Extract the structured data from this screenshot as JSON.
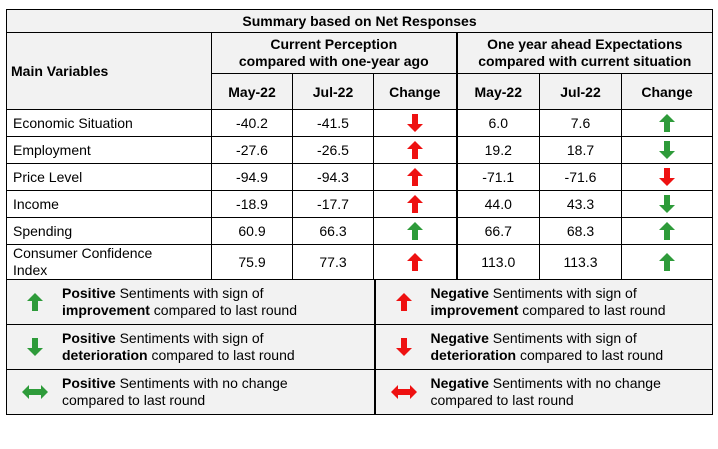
{
  "table": {
    "title": "Summary based on Net Responses",
    "main_variables_header": "Main Variables",
    "group1_header_line1": "Current Perception",
    "group1_header_line2": "compared with one-year ago",
    "group2_header_line1": "One year ahead Expectations",
    "group2_header_line2": "compared with current situation",
    "col_may": "May-22",
    "col_jul": "Jul-22",
    "col_change": "Change",
    "rows": [
      {
        "label": "Economic Situation",
        "cp_may": "-40.2",
        "cp_jul": "-41.5",
        "cp_change": "negative-deterioration",
        "oy_may": "6.0",
        "oy_jul": "7.6",
        "oy_change": "positive-improvement"
      },
      {
        "label": "Employment",
        "cp_may": "-27.6",
        "cp_jul": "-26.5",
        "cp_change": "negative-improvement",
        "oy_may": "19.2",
        "oy_jul": "18.7",
        "oy_change": "positive-deterioration"
      },
      {
        "label": "Price Level",
        "cp_may": "-94.9",
        "cp_jul": "-94.3",
        "cp_change": "negative-improvement",
        "oy_may": "-71.1",
        "oy_jul": "-71.6",
        "oy_change": "negative-deterioration"
      },
      {
        "label": "Income",
        "cp_may": "-18.9",
        "cp_jul": "-17.7",
        "cp_change": "negative-improvement",
        "oy_may": "44.0",
        "oy_jul": "43.3",
        "oy_change": "positive-deterioration"
      },
      {
        "label": "Spending",
        "cp_may": "60.9",
        "cp_jul": "66.3",
        "cp_change": "positive-improvement",
        "oy_may": "66.7",
        "oy_jul": "68.3",
        "oy_change": "positive-improvement"
      },
      {
        "label_line1": "Consumer Confidence",
        "label_line2": "Index",
        "cp_may": "75.9",
        "cp_jul": "77.3",
        "cp_change": "negative-improvement",
        "oy_may": "113.0",
        "oy_jul": "113.3",
        "oy_change": "positive-improvement"
      }
    ]
  },
  "legend": {
    "pos_improvement": {
      "bold": "Positive",
      "rest1": " Sentiments with sign of",
      "bold2": "improvement",
      "rest2": " compared to last round"
    },
    "neg_improvement": {
      "bold": "Negative",
      "rest1": " Sentiments with sign of",
      "bold2": "improvement",
      "rest2": " compared to last round"
    },
    "pos_deterioration": {
      "bold": "Positive",
      "rest1": " Sentiments with sign of",
      "bold2": "deterioration",
      "rest2": " compared to last round"
    },
    "neg_deterioration": {
      "bold": "Negative",
      "rest1": " Sentiments with sign of",
      "bold2": "deterioration",
      "rest2": " compared to last round"
    },
    "pos_nochange": {
      "bold": "Positive",
      "rest1": " Sentiments with no change",
      "line2": "compared to last round"
    },
    "neg_nochange": {
      "bold": "Negative",
      "rest1": " Sentiments with no change",
      "line2": "compared to last round"
    }
  },
  "colors": {
    "green": "#2e9b3a",
    "red": "#ee1111",
    "header_bg": "#f2f2f2"
  }
}
